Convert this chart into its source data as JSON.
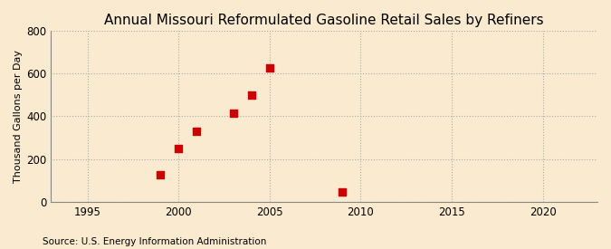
{
  "title": "Annual Missouri Reformulated Gasoline Retail Sales by Refiners",
  "ylabel": "Thousand Gallons per Day",
  "source": "Source: U.S. Energy Information Administration",
  "x_data": [
    1999,
    2000,
    2001,
    2003,
    2004,
    2005,
    2009
  ],
  "y_data": [
    125,
    248,
    330,
    415,
    500,
    625,
    45
  ],
  "marker_color": "#cc0000",
  "marker_size": 30,
  "marker_style": "s",
  "xlim": [
    1993,
    2023
  ],
  "ylim": [
    0,
    800
  ],
  "xticks": [
    1995,
    2000,
    2005,
    2010,
    2015,
    2020
  ],
  "yticks": [
    0,
    200,
    400,
    600,
    800
  ],
  "bg_color": "#faebd0",
  "grid_color": "#aaaaaa",
  "title_fontsize": 11,
  "label_fontsize": 8,
  "tick_fontsize": 8.5,
  "source_fontsize": 7.5
}
